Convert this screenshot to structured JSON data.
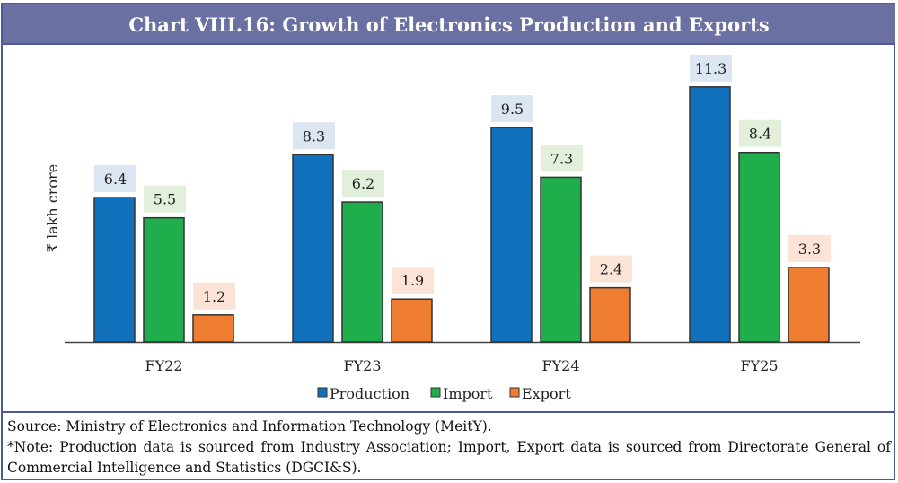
{
  "title": "Chart VIII.16: Growth of Electronics Production and Exports",
  "chart_data": {
    "type": "bar",
    "title": "Chart VIII.16: Growth of Electronics Production and Exports",
    "ylabel": "₹ lakh crore",
    "xlabel": "",
    "categories": [
      "FY22",
      "FY23",
      "FY24",
      "FY25"
    ],
    "series": [
      {
        "name": "Production",
        "values": [
          6.4,
          8.3,
          9.5,
          11.3
        ],
        "color": "#1170bb",
        "label_bg": "#dce6f2"
      },
      {
        "name": "Import",
        "values": [
          5.5,
          6.2,
          7.3,
          8.4
        ],
        "color": "#1fae4b",
        "label_bg": "#e2efda"
      },
      {
        "name": "Export",
        "values": [
          1.2,
          1.9,
          2.4,
          3.3
        ],
        "color": "#ee7d31",
        "label_bg": "#fbe3d6"
      }
    ],
    "ylim": [
      0,
      11.3
    ],
    "grid": false,
    "legend": "bottom",
    "data_labels": true
  },
  "footer": {
    "source": "Source: Ministry of Electronics and Information Technology (MeitY).",
    "note": "*Note: Production data is sourced from Industry Association; Import, Export data is sourced from Directorate General of Commercial Intelligence and Statistics (DGCI&S)."
  }
}
